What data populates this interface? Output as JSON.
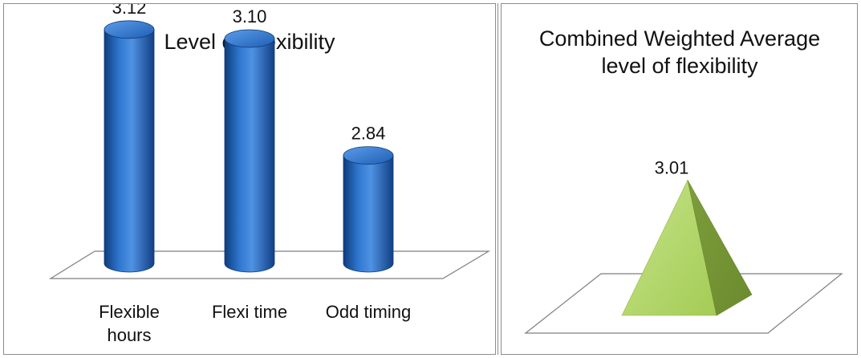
{
  "chart_data": [
    {
      "type": "bar",
      "title": "Level of Flexibility",
      "categories": [
        "Flexible hours",
        "Flexi time",
        "Odd timing"
      ],
      "category_lines": [
        [
          "Flexible",
          "hours"
        ],
        [
          "Flexi time"
        ],
        [
          "Odd timing"
        ]
      ],
      "values": [
        3.12,
        3.1,
        2.84
      ],
      "data_labels": [
        "3.12",
        "3.10",
        "2.84"
      ],
      "shape": "cylinder",
      "color": "#1f5fb4",
      "grid": false,
      "legend": "none"
    },
    {
      "type": "bar",
      "title": "Combined Weighted Average level of flexibility",
      "title_lines": [
        "Combined Weighted Average",
        "level of flexibility"
      ],
      "categories": [
        ""
      ],
      "values": [
        3.01
      ],
      "data_labels": [
        "3.01"
      ],
      "shape": "pyramid",
      "color": "#a9cf5e",
      "grid": false,
      "legend": "none"
    }
  ]
}
